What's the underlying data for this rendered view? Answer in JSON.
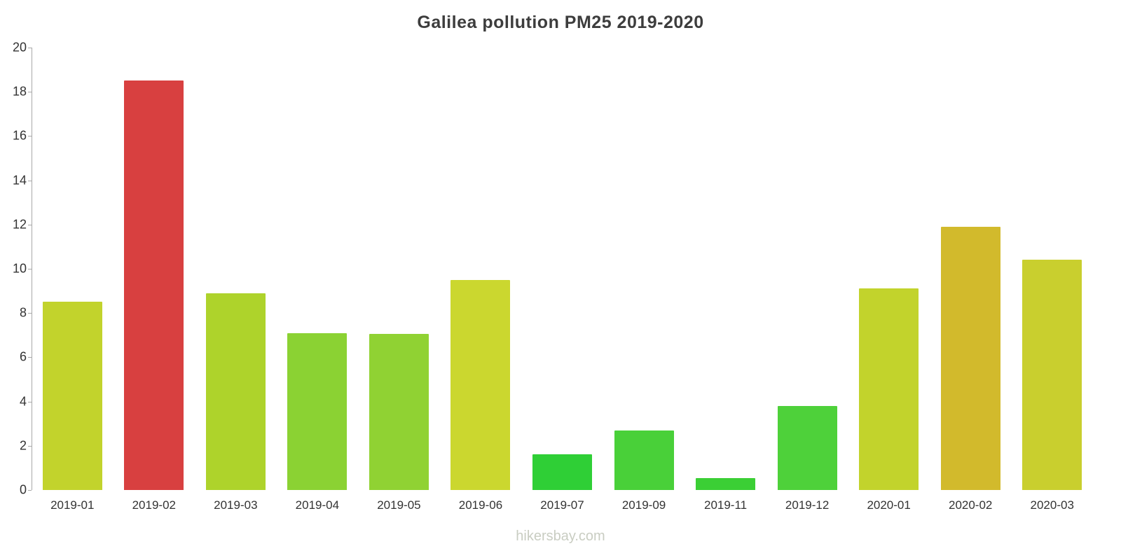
{
  "chart_data": {
    "type": "bar",
    "title": "Galilea pollution PM25 2019-2020",
    "footer": "hikersbay.com",
    "categories": [
      "2019-01",
      "2019-02",
      "2019-03",
      "2019-04",
      "2019-05",
      "2019-06",
      "2019-07",
      "2019-09",
      "2019-11",
      "2019-12",
      "2020-01",
      "2020-02",
      "2020-03"
    ],
    "values": [
      8.5,
      18.5,
      8.9,
      7.1,
      7.05,
      9.5,
      1.6,
      2.7,
      0.55,
      3.8,
      9.1,
      11.9,
      10.4
    ],
    "colors": [
      "#c2d32c",
      "#d84040",
      "#aed32b",
      "#8bd233",
      "#90d233",
      "#cbd72f",
      "#2fcf36",
      "#49d039",
      "#3bcf35",
      "#4ed13a",
      "#c2d32c",
      "#d2ba2c",
      "#c9cf2e"
    ],
    "xlabel": "",
    "ylabel": "",
    "ylim": [
      0,
      20
    ],
    "yticks": [
      0,
      2,
      4,
      6,
      8,
      10,
      12,
      14,
      16,
      18,
      20
    ],
    "grid": false,
    "legend": false
  }
}
